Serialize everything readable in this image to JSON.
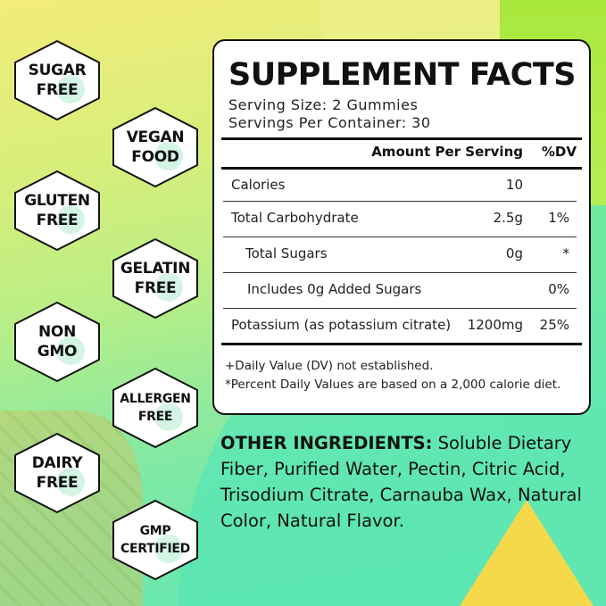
{
  "badges": [
    {
      "line1": "SUGAR",
      "line2": "FREE"
    },
    {
      "line1": "VEGAN",
      "line2": "FOOD"
    },
    {
      "line1": "GLUTEN",
      "line2": "FREE"
    },
    {
      "line1": "GELATIN",
      "line2": "FREE"
    },
    {
      "line1": "NON",
      "line2": "GMO"
    },
    {
      "line1": "ALLERGEN",
      "line2": "FREE"
    },
    {
      "line1": "DAIRY",
      "line2": "FREE"
    },
    {
      "line1": "GMP",
      "line2": "CERTIFIED"
    }
  ],
  "facts": {
    "title": "SUPPLEMENT FACTS",
    "serving_size": "Serving Size: 2 Gummies",
    "servings_per_container": "Servings Per Container: 30",
    "header_amount": "Amount Per Serving",
    "header_dv": "%DV",
    "rows": [
      {
        "name": "Calories",
        "amount": "10",
        "dv": ""
      },
      {
        "name": "Total Carbohydrate",
        "amount": "2.5g",
        "dv": "1%"
      },
      {
        "name": "Total Sugars",
        "amount": "0g",
        "dv": "*"
      },
      {
        "name": "Includes 0g Added Sugars",
        "amount": "",
        "dv": "0%"
      },
      {
        "name": "Potassium (as potassium citrate)",
        "amount": "1200mg",
        "dv": "25%"
      }
    ],
    "footnote1": "+Daily Value (DV) not established.",
    "footnote2": "*Percent Daily Values are based on a 2,000 calorie diet."
  },
  "ingredients": {
    "label": "OTHER INGREDIENTS:",
    "text": " Soluble Dietary Fiber, Purified Water, Pectin, Citric Acid, Trisodium Citrate, Carnauba Wax, Natural Color, Natural Flavor."
  }
}
